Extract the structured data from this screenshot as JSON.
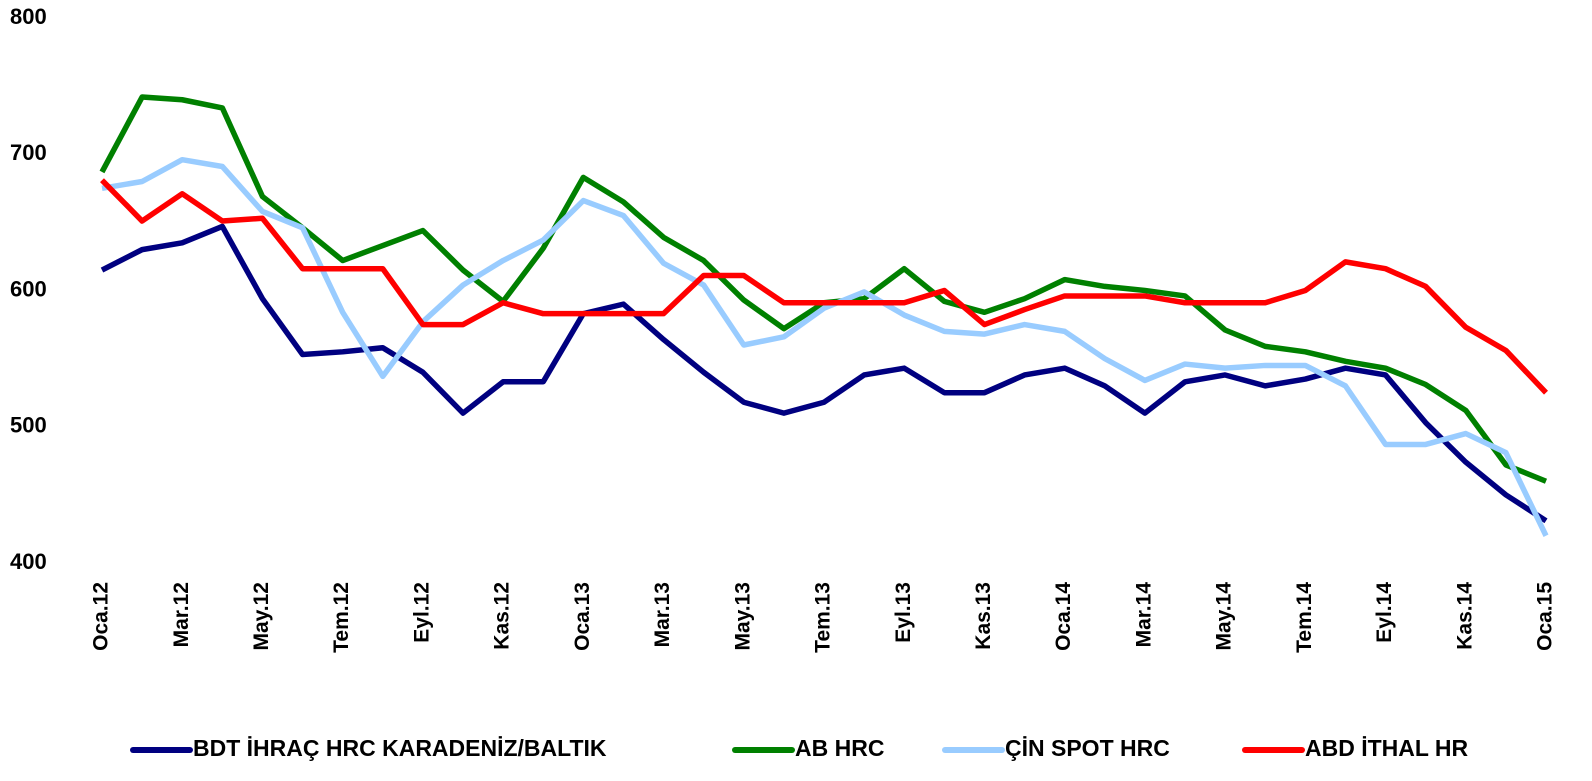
{
  "chart_data": {
    "type": "line",
    "categories": [
      "Oca.12",
      null,
      "Mar.12",
      null,
      "May.12",
      null,
      "Tem.12",
      null,
      "Eyl.12",
      null,
      "Kas.12",
      null,
      "Oca.13",
      null,
      "Mar.13",
      null,
      "May.13",
      null,
      "Tem.13",
      null,
      "Eyl.13",
      null,
      "Kas.13",
      null,
      "Oca.14",
      null,
      "Mar.14",
      null,
      "May.14",
      null,
      "Tem.14",
      null,
      "Eyl.14",
      null,
      "Kas.14",
      null,
      "Oca.15"
    ],
    "series": [
      {
        "name": "BDT İHRAÇ HRC KARADENİZ/BALTIK",
        "color": "#000080",
        "values": [
          615,
          630,
          635,
          647,
          594,
          553,
          555,
          558,
          540,
          510,
          533,
          533,
          583,
          590,
          564,
          540,
          518,
          510,
          518,
          538,
          543,
          525,
          525,
          538,
          543,
          530,
          510,
          533,
          538,
          530,
          535,
          543,
          538,
          503,
          474,
          450,
          431
        ]
      },
      {
        "name": "AB HRC",
        "color": "#008000",
        "values": [
          687,
          742,
          740,
          734,
          669,
          646,
          622,
          633,
          644,
          615,
          592,
          631,
          683,
          665,
          639,
          622,
          593,
          572,
          591,
          594,
          616,
          592,
          584,
          594,
          608,
          603,
          600,
          596,
          571,
          559,
          555,
          548,
          543,
          531,
          512,
          472,
          460
        ]
      },
      {
        "name": "ÇİN SPOT HRC",
        "color": "#99ccff",
        "values": [
          675,
          680,
          696,
          691,
          658,
          646,
          584,
          537,
          577,
          604,
          622,
          637,
          666,
          655,
          620,
          604,
          560,
          566,
          587,
          599,
          582,
          570,
          568,
          575,
          570,
          550,
          534,
          546,
          543,
          545,
          545,
          530,
          487,
          487,
          495,
          481,
          420
        ]
      },
      {
        "name": "ABD İTHAL HR",
        "color": "#ff0000",
        "values": [
          681,
          651,
          671,
          651,
          653,
          616,
          616,
          616,
          575,
          575,
          591,
          583,
          583,
          583,
          583,
          611,
          611,
          591,
          591,
          591,
          591,
          600,
          575,
          586,
          596,
          596,
          596,
          591,
          591,
          591,
          600,
          621,
          616,
          603,
          573,
          556,
          525
        ]
      }
    ],
    "ylim": [
      400,
      800
    ],
    "yticks": [
      400,
      500,
      600,
      700,
      800
    ],
    "grid": false
  }
}
